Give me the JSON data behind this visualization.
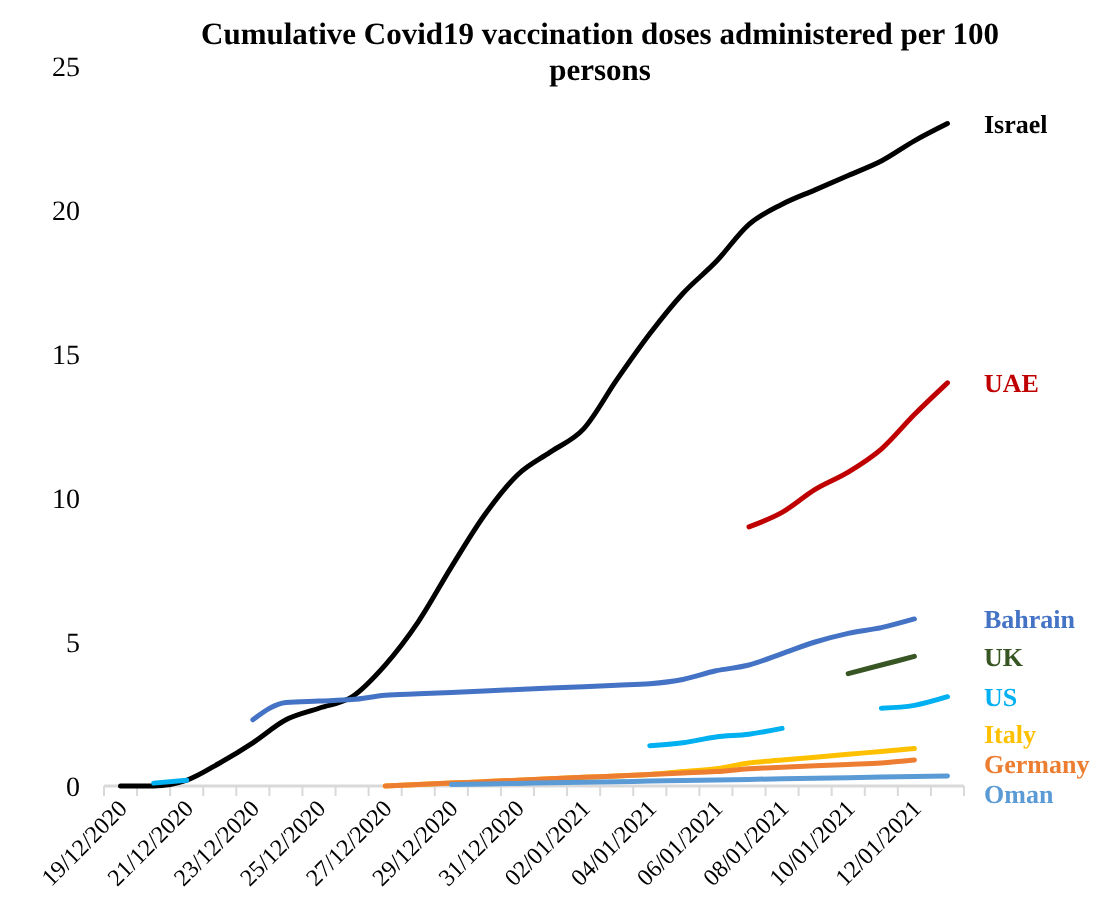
{
  "chart_data": {
    "type": "line",
    "title": "Cumulative Covid19 vaccination doses administered per 100 persons",
    "categories": [
      "19/12/2020",
      null,
      "21/12/2020",
      null,
      "23/12/2020",
      null,
      "25/12/2020",
      null,
      "27/12/2020",
      null,
      "29/12/2020",
      null,
      "31/12/2020",
      null,
      "02/01/2021",
      null,
      "04/01/2021",
      null,
      "06/01/2021",
      null,
      "08/01/2021",
      null,
      "10/01/2021",
      null,
      "12/01/2021",
      null
    ],
    "ylim": [
      0,
      25
    ],
    "yticks": [
      0,
      5,
      10,
      15,
      20,
      25
    ],
    "grid": false,
    "legend": false,
    "marker": "none",
    "line_style": "solid",
    "series": [
      {
        "name": "Israel",
        "color": "#000000",
        "values": [
          0,
          0,
          0.2,
          0.8,
          1.5,
          2.3,
          2.7,
          3.1,
          4.2,
          5.7,
          7.6,
          9.4,
          10.8,
          11.6,
          12.4,
          14.1,
          15.7,
          17.1,
          18.2,
          19.5,
          20.2,
          20.7,
          21.2,
          21.7,
          22.4,
          23.0
        ]
      },
      {
        "name": "UAE",
        "color": "#c00000",
        "values": [
          null,
          null,
          null,
          null,
          null,
          null,
          null,
          null,
          null,
          null,
          null,
          null,
          null,
          null,
          null,
          null,
          null,
          null,
          null,
          9.0,
          9.5,
          10.3,
          10.9,
          11.7,
          12.9,
          14.0
        ]
      },
      {
        "name": "Bahrain",
        "color": "#4472c4",
        "values": [
          null,
          null,
          null,
          null,
          2.3,
          2.9,
          2.95,
          3.0,
          3.15,
          3.2,
          3.25,
          3.3,
          3.35,
          3.4,
          3.45,
          3.5,
          3.55,
          3.7,
          4.0,
          4.2,
          4.6,
          5.0,
          5.3,
          5.5,
          5.8,
          null
        ]
      },
      {
        "name": "UK",
        "color": "#375623",
        "values": [
          null,
          null,
          null,
          null,
          null,
          null,
          null,
          null,
          null,
          null,
          null,
          null,
          null,
          null,
          null,
          null,
          null,
          null,
          null,
          null,
          null,
          null,
          3.9,
          4.2,
          4.5,
          null
        ]
      },
      {
        "name": "US",
        "color": "#00b0f0",
        "values": [
          null,
          0.1,
          0.2,
          null,
          null,
          null,
          null,
          null,
          null,
          null,
          null,
          null,
          null,
          null,
          null,
          null,
          1.4,
          1.5,
          1.7,
          1.8,
          2.0,
          null,
          null,
          2.7,
          2.8,
          3.1
        ]
      },
      {
        "name": "Italy",
        "color": "#ffc000",
        "values": [
          null,
          null,
          null,
          null,
          null,
          null,
          null,
          null,
          0,
          0.05,
          0.1,
          0.15,
          0.2,
          0.25,
          0.3,
          0.35,
          0.4,
          0.5,
          0.6,
          0.8,
          0.9,
          1.0,
          1.1,
          1.2,
          1.3,
          null
        ]
      },
      {
        "name": "Germany",
        "color": "#ed7d31",
        "values": [
          null,
          null,
          null,
          null,
          null,
          null,
          null,
          null,
          0,
          0.05,
          0.1,
          0.15,
          0.2,
          0.25,
          0.3,
          0.35,
          0.4,
          0.45,
          0.5,
          0.6,
          0.65,
          0.7,
          0.75,
          0.8,
          0.9,
          null
        ]
      },
      {
        "name": "Oman",
        "color": "#5b9bd5",
        "values": [
          null,
          null,
          null,
          null,
          null,
          null,
          null,
          null,
          null,
          null,
          0.05,
          0.07,
          0.09,
          0.11,
          0.13,
          0.15,
          0.17,
          0.19,
          0.21,
          0.23,
          0.25,
          0.27,
          0.29,
          0.31,
          0.33,
          0.35
        ]
      }
    ]
  }
}
